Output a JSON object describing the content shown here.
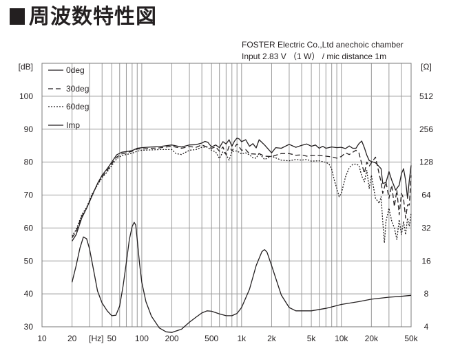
{
  "title": "周波数特性図",
  "conditions": {
    "line1": "FOSTER Electric Co.,Ltd  anechoic chamber",
    "line2": "Input 2.83 V （1 W）  / mic distance 1m"
  },
  "chart_data": {
    "type": "line",
    "x_scale": "log",
    "xlim": [
      10,
      50000
    ],
    "x_tick_labels": [
      {
        "v": 10,
        "t": "10"
      },
      {
        "v": 20,
        "t": "20"
      },
      {
        "v": 35,
        "t": "[Hz]"
      },
      {
        "v": 50,
        "t": "50"
      },
      {
        "v": 100,
        "t": "100"
      },
      {
        "v": 200,
        "t": "200"
      },
      {
        "v": 500,
        "t": "500"
      },
      {
        "v": 1000,
        "t": "1k"
      },
      {
        "v": 2000,
        "t": "2k"
      },
      {
        "v": 5000,
        "t": "5k"
      },
      {
        "v": 10000,
        "t": "10k"
      },
      {
        "v": 20000,
        "t": "20k"
      },
      {
        "v": 50000,
        "t": "50k"
      }
    ],
    "ylim": [
      30,
      110
    ],
    "y_ticks": [
      30,
      40,
      50,
      60,
      70,
      80,
      90,
      100
    ],
    "y_unit": "[dB]",
    "y2_scale": "log2",
    "y2_ticks": [
      4,
      8,
      16,
      32,
      64,
      128,
      256,
      512
    ],
    "y2_unit": "[Ω]",
    "grid": true,
    "legend_position": "top-left",
    "series": [
      {
        "name": "0deg",
        "style": "solid",
        "axis": "left",
        "points": [
          [
            20,
            56
          ],
          [
            22,
            58
          ],
          [
            25,
            63
          ],
          [
            28,
            66
          ],
          [
            32,
            70
          ],
          [
            36,
            73.5
          ],
          [
            40,
            76
          ],
          [
            45,
            78
          ],
          [
            50,
            80
          ],
          [
            56,
            82.2
          ],
          [
            63,
            83
          ],
          [
            70,
            83.2
          ],
          [
            80,
            83.5
          ],
          [
            90,
            84.2
          ],
          [
            100,
            84.4
          ],
          [
            125,
            84.6
          ],
          [
            150,
            84.7
          ],
          [
            200,
            85.2
          ],
          [
            250,
            84.6
          ],
          [
            300,
            85.2
          ],
          [
            350,
            85.3
          ],
          [
            400,
            85.8
          ],
          [
            430,
            86.3
          ],
          [
            460,
            86
          ],
          [
            500,
            84.6
          ],
          [
            550,
            85.2
          ],
          [
            600,
            84.4
          ],
          [
            650,
            86.2
          ],
          [
            700,
            85.5
          ],
          [
            750,
            86.8
          ],
          [
            800,
            84.8
          ],
          [
            850,
            86.4
          ],
          [
            900,
            87.3
          ],
          [
            950,
            87
          ],
          [
            1000,
            86.2
          ],
          [
            1100,
            86.8
          ],
          [
            1200,
            84.8
          ],
          [
            1300,
            85.6
          ],
          [
            1400,
            84.3
          ],
          [
            1500,
            86.8
          ],
          [
            1700,
            85.2
          ],
          [
            2000,
            82.8
          ],
          [
            2200,
            84.4
          ],
          [
            2500,
            84.2
          ],
          [
            3000,
            85.4
          ],
          [
            3500,
            84.5
          ],
          [
            4000,
            85.1
          ],
          [
            4500,
            85.5
          ],
          [
            5000,
            84.8
          ],
          [
            5500,
            85.2
          ],
          [
            6000,
            84.2
          ],
          [
            6500,
            84.8
          ],
          [
            7000,
            84.2
          ],
          [
            8000,
            84.6
          ],
          [
            9000,
            84.4
          ],
          [
            10000,
            84.5
          ],
          [
            11000,
            84.1
          ],
          [
            12000,
            84.9
          ],
          [
            13000,
            84.2
          ],
          [
            14000,
            84.2
          ],
          [
            15000,
            85.6
          ],
          [
            16000,
            86.4
          ],
          [
            17000,
            84.4
          ],
          [
            18000,
            82.1
          ],
          [
            19000,
            80.5
          ],
          [
            20000,
            80.2
          ],
          [
            22000,
            79.8
          ],
          [
            25000,
            78
          ],
          [
            26000,
            73.5
          ],
          [
            28000,
            73.8
          ],
          [
            30000,
            77.1
          ],
          [
            32000,
            74.5
          ],
          [
            35000,
            71.5
          ],
          [
            38000,
            73
          ],
          [
            40000,
            76.5
          ],
          [
            42000,
            78
          ],
          [
            44000,
            74.5
          ],
          [
            46000,
            69
          ],
          [
            48000,
            74.5
          ],
          [
            50000,
            79
          ]
        ]
      },
      {
        "name": "30deg",
        "style": "dashed",
        "axis": "left",
        "points": [
          [
            20,
            57
          ],
          [
            22,
            59
          ],
          [
            25,
            63.5
          ],
          [
            28,
            66
          ],
          [
            32,
            70
          ],
          [
            36,
            73.5
          ],
          [
            40,
            75.5
          ],
          [
            45,
            77.5
          ],
          [
            50,
            79.5
          ],
          [
            56,
            81.5
          ],
          [
            63,
            82.5
          ],
          [
            70,
            82.8
          ],
          [
            80,
            83.3
          ],
          [
            90,
            84
          ],
          [
            100,
            84
          ],
          [
            125,
            84.2
          ],
          [
            150,
            84.3
          ],
          [
            200,
            84.8
          ],
          [
            250,
            84.2
          ],
          [
            300,
            84.7
          ],
          [
            350,
            84.5
          ],
          [
            400,
            85.2
          ],
          [
            450,
            84.6
          ],
          [
            500,
            84.2
          ],
          [
            550,
            84.6
          ],
          [
            600,
            83.3
          ],
          [
            650,
            84.6
          ],
          [
            700,
            82.2
          ],
          [
            750,
            84.8
          ],
          [
            800,
            83.4
          ],
          [
            900,
            85.5
          ],
          [
            1000,
            83.6
          ],
          [
            1100,
            83.8
          ],
          [
            1200,
            82.5
          ],
          [
            1300,
            82.5
          ],
          [
            1400,
            82.4
          ],
          [
            1500,
            82.6
          ],
          [
            1700,
            81.8
          ],
          [
            2000,
            81.7
          ],
          [
            2500,
            82.6
          ],
          [
            3000,
            82.6
          ],
          [
            3500,
            82.1
          ],
          [
            4000,
            82.2
          ],
          [
            4500,
            81.8
          ],
          [
            5000,
            82
          ],
          [
            6000,
            82
          ],
          [
            7000,
            81.8
          ],
          [
            8000,
            81.6
          ],
          [
            9000,
            81.2
          ],
          [
            10000,
            81.7
          ],
          [
            11000,
            82.8
          ],
          [
            12000,
            82.3
          ],
          [
            13000,
            83
          ],
          [
            14000,
            83.6
          ],
          [
            15000,
            82.8
          ],
          [
            16000,
            79.5
          ],
          [
            17000,
            76.6
          ],
          [
            18000,
            80
          ],
          [
            19000,
            78.7
          ],
          [
            20000,
            79.8
          ],
          [
            22000,
            81.5
          ],
          [
            24000,
            76.2
          ],
          [
            25000,
            74
          ],
          [
            26000,
            70.5
          ],
          [
            28000,
            74
          ],
          [
            30000,
            69
          ],
          [
            32000,
            73
          ],
          [
            34000,
            66.5
          ],
          [
            36000,
            71.5
          ],
          [
            38000,
            64
          ],
          [
            40000,
            70.5
          ],
          [
            42000,
            69
          ],
          [
            44000,
            63
          ],
          [
            46000,
            67
          ],
          [
            48000,
            67
          ],
          [
            50000,
            76
          ]
        ]
      },
      {
        "name": "60deg",
        "style": "dotted",
        "axis": "left",
        "points": [
          [
            20,
            57.5
          ],
          [
            22,
            59.5
          ],
          [
            25,
            64
          ],
          [
            28,
            66.3
          ],
          [
            32,
            70.5
          ],
          [
            36,
            73
          ],
          [
            40,
            75.3
          ],
          [
            45,
            77
          ],
          [
            50,
            79
          ],
          [
            56,
            81
          ],
          [
            63,
            82
          ],
          [
            70,
            82.3
          ],
          [
            80,
            82.7
          ],
          [
            90,
            83.3
          ],
          [
            100,
            83.6
          ],
          [
            125,
            83.7
          ],
          [
            150,
            83.8
          ],
          [
            200,
            83.8
          ],
          [
            220,
            82.6
          ],
          [
            250,
            82.3
          ],
          [
            300,
            83.6
          ],
          [
            350,
            83.8
          ],
          [
            400,
            84.5
          ],
          [
            450,
            84.6
          ],
          [
            500,
            83.6
          ],
          [
            550,
            83.1
          ],
          [
            600,
            81.1
          ],
          [
            650,
            83.2
          ],
          [
            700,
            82.3
          ],
          [
            750,
            80.6
          ],
          [
            800,
            83.2
          ],
          [
            900,
            83.4
          ],
          [
            1000,
            82.5
          ],
          [
            1100,
            82.8
          ],
          [
            1200,
            82.2
          ],
          [
            1300,
            81.3
          ],
          [
            1400,
            81.2
          ],
          [
            1500,
            82.7
          ],
          [
            1700,
            80.8
          ],
          [
            2000,
            81.8
          ],
          [
            2500,
            80.6
          ],
          [
            3000,
            80.4
          ],
          [
            3500,
            80.8
          ],
          [
            4000,
            80.6
          ],
          [
            4500,
            80.8
          ],
          [
            5000,
            80.3
          ],
          [
            6000,
            80.4
          ],
          [
            7000,
            79.9
          ],
          [
            7500,
            79.5
          ],
          [
            8000,
            77.8
          ],
          [
            8500,
            74.5
          ],
          [
            9000,
            72
          ],
          [
            9500,
            69.5
          ],
          [
            10000,
            70.5
          ],
          [
            11000,
            75.5
          ],
          [
            12000,
            78.3
          ],
          [
            13000,
            79.3
          ],
          [
            14000,
            79.4
          ],
          [
            15000,
            79
          ],
          [
            16000,
            75.8
          ],
          [
            17000,
            74
          ],
          [
            18000,
            77.5
          ],
          [
            19000,
            72
          ],
          [
            20000,
            76
          ],
          [
            22000,
            69
          ],
          [
            24000,
            67.5
          ],
          [
            25000,
            69.5
          ],
          [
            26000,
            62
          ],
          [
            27000,
            55.5
          ],
          [
            28000,
            62
          ],
          [
            30000,
            66
          ],
          [
            32000,
            62
          ],
          [
            34000,
            60
          ],
          [
            36000,
            56.5
          ],
          [
            38000,
            62.5
          ],
          [
            40000,
            58
          ],
          [
            42000,
            62
          ],
          [
            44000,
            58
          ],
          [
            46000,
            63
          ],
          [
            48000,
            60.5
          ],
          [
            50000,
            64.5
          ]
        ]
      },
      {
        "name": "Imp",
        "style": "solid",
        "axis": "right",
        "unit": "ohm",
        "points": [
          [
            20,
            10.2
          ],
          [
            22,
            14.5
          ],
          [
            24,
            21
          ],
          [
            26,
            26.5
          ],
          [
            28,
            25.5
          ],
          [
            30,
            20.5
          ],
          [
            33,
            13
          ],
          [
            36,
            8.5
          ],
          [
            40,
            6.6
          ],
          [
            45,
            5.6
          ],
          [
            50,
            5.05
          ],
          [
            55,
            5.1
          ],
          [
            60,
            6.2
          ],
          [
            65,
            9.5
          ],
          [
            70,
            15.5
          ],
          [
            75,
            25
          ],
          [
            80,
            33
          ],
          [
            84,
            36
          ],
          [
            87,
            34
          ],
          [
            90,
            25
          ],
          [
            95,
            15
          ],
          [
            100,
            10.2
          ],
          [
            110,
            6.8
          ],
          [
            125,
            5.0
          ],
          [
            150,
            3.9
          ],
          [
            175,
            3.6
          ],
          [
            200,
            3.55
          ],
          [
            250,
            3.8
          ],
          [
            300,
            4.4
          ],
          [
            350,
            4.9
          ],
          [
            400,
            5.35
          ],
          [
            450,
            5.6
          ],
          [
            500,
            5.55
          ],
          [
            600,
            5.25
          ],
          [
            700,
            5.05
          ],
          [
            800,
            5.05
          ],
          [
            900,
            5.3
          ],
          [
            1000,
            6.0
          ],
          [
            1200,
            8.8
          ],
          [
            1400,
            14.5
          ],
          [
            1600,
            19.5
          ],
          [
            1700,
            20.3
          ],
          [
            1800,
            19.2
          ],
          [
            2000,
            14.5
          ],
          [
            2500,
            7.8
          ],
          [
            3000,
            6.0
          ],
          [
            3500,
            5.6
          ],
          [
            4000,
            5.6
          ],
          [
            5000,
            5.6
          ],
          [
            7000,
            5.9
          ],
          [
            10000,
            6.4
          ],
          [
            15000,
            6.8
          ],
          [
            20000,
            7.15
          ],
          [
            30000,
            7.45
          ],
          [
            40000,
            7.6
          ],
          [
            50000,
            7.75
          ]
        ]
      }
    ]
  }
}
